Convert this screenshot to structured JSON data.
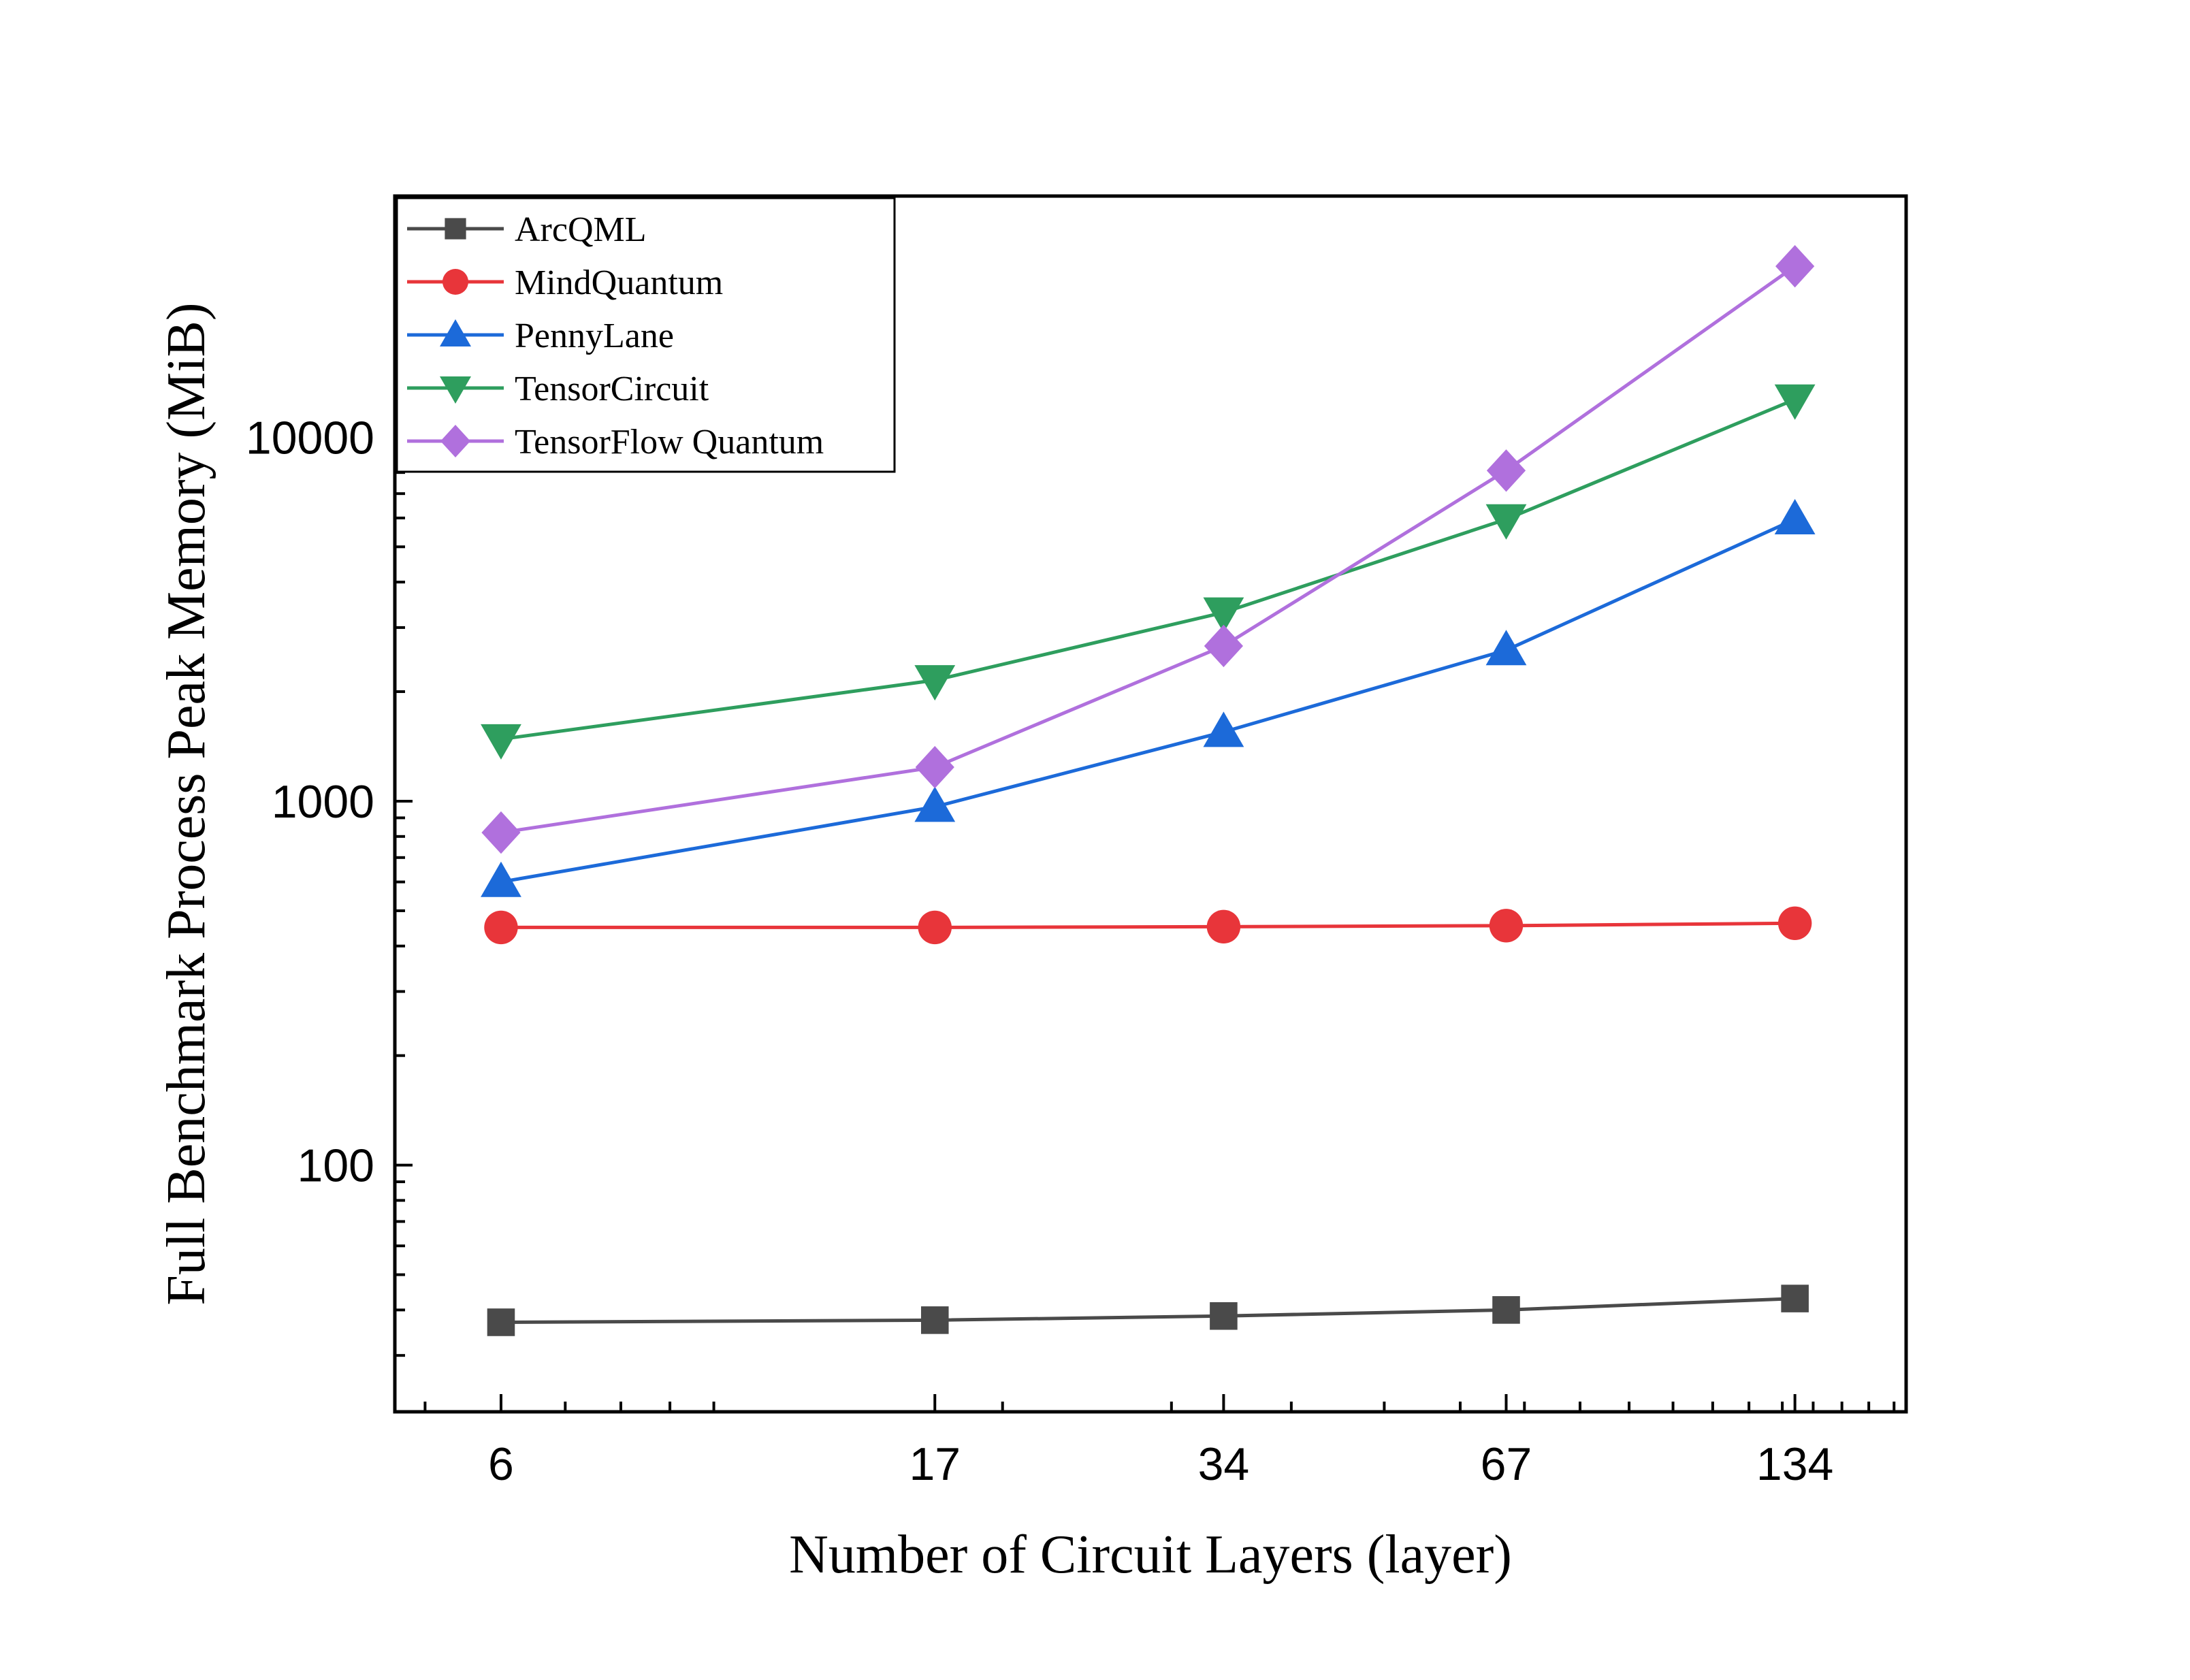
{
  "chart_data": {
    "type": "line",
    "xscale": "log",
    "yscale": "log",
    "x": [
      6,
      17,
      34,
      67,
      134
    ],
    "xticks": [
      "6",
      "17",
      "34",
      "67",
      "134"
    ],
    "yticks": [
      "100",
      "1000",
      "10000"
    ],
    "xlabel": "Number of Circuit Layers (layer)",
    "ylabel": "Full Benchmark Process Peak Memory (MiB)",
    "legend_position": "top-left",
    "grid": false,
    "series": [
      {
        "name": "ArcQML",
        "color": "#4a4a4a",
        "marker": "square",
        "values": [
          37,
          37.5,
          38.5,
          40,
          43
        ]
      },
      {
        "name": "MindQuantum",
        "color": "#e8353a",
        "marker": "circle",
        "values": [
          450,
          450,
          452,
          455,
          462
        ]
      },
      {
        "name": "PennyLane",
        "color": "#1c6ad9",
        "marker": "triangle-up",
        "values": [
          600,
          965,
          1550,
          2600,
          5950
        ]
      },
      {
        "name": "TensorCircuit",
        "color": "#2e9e5e",
        "marker": "triangle-down",
        "values": [
          1480,
          2150,
          3300,
          5950,
          12700
        ]
      },
      {
        "name": "TensorFlow Quantum",
        "color": "#b070dd",
        "marker": "diamond",
        "values": [
          820,
          1240,
          2670,
          8100,
          29500
        ]
      }
    ]
  }
}
